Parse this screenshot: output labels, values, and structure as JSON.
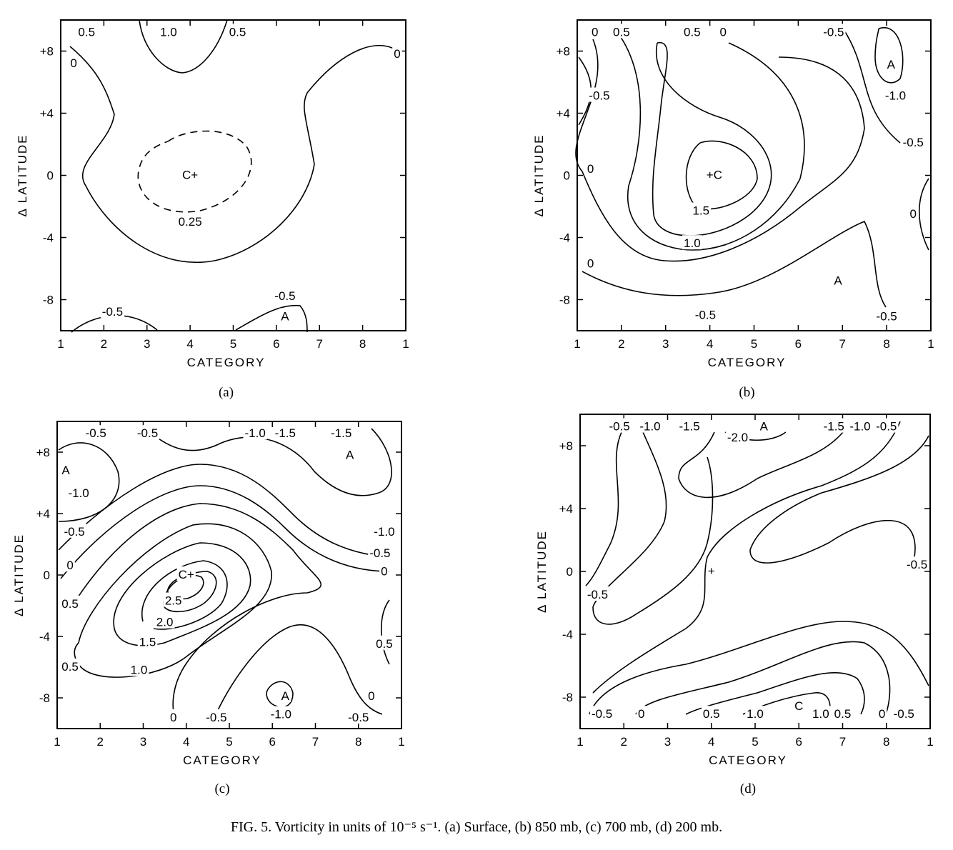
{
  "caption": "FIG. 5. Vorticity in units of 10⁻⁵ s⁻¹. (a) Surface, (b) 850 mb, (c) 700 mb, (d) 200 mb.",
  "chart_data": [
    {
      "type": "contour",
      "panel_label": "(a)",
      "xlabel": "CATEGORY",
      "ylabel": "Δ LATITUDE",
      "x_ticks": [
        "1",
        "2",
        "3",
        "4",
        "5",
        "6",
        "7",
        "8",
        "1"
      ],
      "y_ticks": [
        "+8",
        "+4",
        "0",
        "-4",
        "-8"
      ],
      "y_range": [
        -10,
        10
      ],
      "labels": [
        {
          "text": "0.5",
          "x": 1.6,
          "y": 9.2
        },
        {
          "text": "1.0",
          "x": 3.5,
          "y": 9.2
        },
        {
          "text": "0.5",
          "x": 5.1,
          "y": 9.2
        },
        {
          "text": "0",
          "x": 1.3,
          "y": 7.2
        },
        {
          "text": "0",
          "x": 8.8,
          "y": 7.8
        },
        {
          "text": "C+",
          "x": 4.0,
          "y": 0.0
        },
        {
          "text": "0.25",
          "x": 4.0,
          "y": -3.0
        },
        {
          "text": "-0.5",
          "x": 2.2,
          "y": -8.8
        },
        {
          "text": "-0.5",
          "x": 6.2,
          "y": -7.8
        },
        {
          "text": "A",
          "x": 6.2,
          "y": -9.1
        }
      ]
    },
    {
      "type": "contour",
      "panel_label": "(b)",
      "xlabel": "CATEGORY",
      "ylabel": "Δ LATITUDE",
      "x_ticks": [
        "1",
        "2",
        "3",
        "4",
        "5",
        "6",
        "7",
        "8",
        "1"
      ],
      "y_ticks": [
        "+8",
        "+4",
        "0",
        "-4",
        "-8"
      ],
      "y_range": [
        -10,
        10
      ],
      "labels": [
        {
          "text": "0",
          "x": 1.4,
          "y": 9.2
        },
        {
          "text": "0.5",
          "x": 2.0,
          "y": 9.2
        },
        {
          "text": "0.5",
          "x": 3.6,
          "y": 9.2
        },
        {
          "text": "0",
          "x": 4.3,
          "y": 9.2
        },
        {
          "text": "-0.5",
          "x": 6.8,
          "y": 9.2
        },
        {
          "text": "A",
          "x": 8.1,
          "y": 7.1
        },
        {
          "text": "-1.0",
          "x": 8.2,
          "y": 5.1
        },
        {
          "text": "-0.5",
          "x": 1.5,
          "y": 5.1
        },
        {
          "text": "-0.5",
          "x": 8.6,
          "y": 2.1
        },
        {
          "text": "0",
          "x": 1.3,
          "y": 0.4
        },
        {
          "text": "+C",
          "x": 4.1,
          "y": 0.0
        },
        {
          "text": "0",
          "x": 8.6,
          "y": -2.5
        },
        {
          "text": "1.5",
          "x": 3.8,
          "y": -2.3
        },
        {
          "text": "1.0",
          "x": 3.6,
          "y": -4.4
        },
        {
          "text": "0",
          "x": 1.3,
          "y": -5.7
        },
        {
          "text": "A",
          "x": 6.9,
          "y": -6.8
        },
        {
          "text": "-0.5",
          "x": 3.9,
          "y": -9.0
        },
        {
          "text": "-0.5",
          "x": 8.0,
          "y": -9.1
        }
      ]
    },
    {
      "type": "contour",
      "panel_label": "(c)",
      "xlabel": "CATEGORY",
      "ylabel": "Δ LATITUDE",
      "x_ticks": [
        "1",
        "2",
        "3",
        "4",
        "5",
        "6",
        "7",
        "8",
        "1"
      ],
      "y_ticks": [
        "+8",
        "+4",
        "0",
        "-4",
        "-8"
      ],
      "y_range": [
        -10,
        10
      ],
      "labels": [
        {
          "text": "-0.5",
          "x": 1.9,
          "y": 9.2
        },
        {
          "text": "-0.5",
          "x": 3.1,
          "y": 9.2
        },
        {
          "text": "-1.0",
          "x": 5.6,
          "y": 9.2
        },
        {
          "text": "-1.5",
          "x": 6.3,
          "y": 9.2
        },
        {
          "text": "-1.5",
          "x": 7.6,
          "y": 9.2
        },
        {
          "text": "A",
          "x": 1.2,
          "y": 6.8
        },
        {
          "text": "A",
          "x": 7.8,
          "y": 7.8
        },
        {
          "text": "-1.0",
          "x": 1.5,
          "y": 5.3
        },
        {
          "text": "-0.5",
          "x": 1.4,
          "y": 2.8
        },
        {
          "text": "-1.0",
          "x": 8.6,
          "y": 2.8
        },
        {
          "text": "-0.5",
          "x": 8.5,
          "y": 1.4
        },
        {
          "text": "0",
          "x": 1.3,
          "y": 0.6
        },
        {
          "text": "0",
          "x": 8.6,
          "y": 0.2
        },
        {
          "text": "C+",
          "x": 4.0,
          "y": 0.0
        },
        {
          "text": "0.5",
          "x": 1.3,
          "y": -1.9
        },
        {
          "text": "2.5",
          "x": 3.7,
          "y": -1.7
        },
        {
          "text": "2.0",
          "x": 3.5,
          "y": -3.1
        },
        {
          "text": "1.5",
          "x": 3.1,
          "y": -4.4
        },
        {
          "text": "0.5",
          "x": 8.6,
          "y": -4.5
        },
        {
          "text": "1.0",
          "x": 2.9,
          "y": -6.2
        },
        {
          "text": "0.5",
          "x": 1.3,
          "y": -6.0
        },
        {
          "text": "A",
          "x": 6.3,
          "y": -7.9
        },
        {
          "text": "0",
          "x": 8.3,
          "y": -7.9
        },
        {
          "text": "0",
          "x": 3.7,
          "y": -9.3
        },
        {
          "text": "-0.5",
          "x": 4.7,
          "y": -9.3
        },
        {
          "text": "-1.0",
          "x": 6.2,
          "y": -9.1
        },
        {
          "text": "-0.5",
          "x": 8.0,
          "y": -9.3
        }
      ]
    },
    {
      "type": "contour",
      "panel_label": "(d)",
      "xlabel": "CATEGORY",
      "ylabel": "Δ LATITUDE",
      "x_ticks": [
        "1",
        "2",
        "3",
        "4",
        "5",
        "6",
        "7",
        "8",
        "1"
      ],
      "y_ticks": [
        "+8",
        "+4",
        "0",
        "-4",
        "-8"
      ],
      "y_range": [
        -10,
        10
      ],
      "labels": [
        {
          "text": "-0.5",
          "x": 1.9,
          "y": 9.2
        },
        {
          "text": "-1.0",
          "x": 2.6,
          "y": 9.2
        },
        {
          "text": "-1.5",
          "x": 3.5,
          "y": 9.2
        },
        {
          "text": "A",
          "x": 5.2,
          "y": 9.2
        },
        {
          "text": "-2.0",
          "x": 4.6,
          "y": 8.5
        },
        {
          "text": "-1.5",
          "x": 6.8,
          "y": 9.2
        },
        {
          "text": "-1.0",
          "x": 7.4,
          "y": 9.2
        },
        {
          "text": "-0.5",
          "x": 8.0,
          "y": 9.2
        },
        {
          "text": "+",
          "x": 4.0,
          "y": 0.0
        },
        {
          "text": "-0.5",
          "x": 8.7,
          "y": 0.4
        },
        {
          "text": "-0.5",
          "x": 1.4,
          "y": -1.5
        },
        {
          "text": "C",
          "x": 6.0,
          "y": -8.6
        },
        {
          "text": "-0.5",
          "x": 1.5,
          "y": -9.1
        },
        {
          "text": "0",
          "x": 2.4,
          "y": -9.1
        },
        {
          "text": "0.5",
          "x": 4.0,
          "y": -9.1
        },
        {
          "text": "1.0",
          "x": 5.0,
          "y": -9.1
        },
        {
          "text": "1.0",
          "x": 6.5,
          "y": -9.1
        },
        {
          "text": "0.5",
          "x": 7.0,
          "y": -9.1
        },
        {
          "text": "0",
          "x": 7.9,
          "y": -9.1
        },
        {
          "text": "-0.5",
          "x": 8.4,
          "y": -9.1
        }
      ]
    }
  ]
}
